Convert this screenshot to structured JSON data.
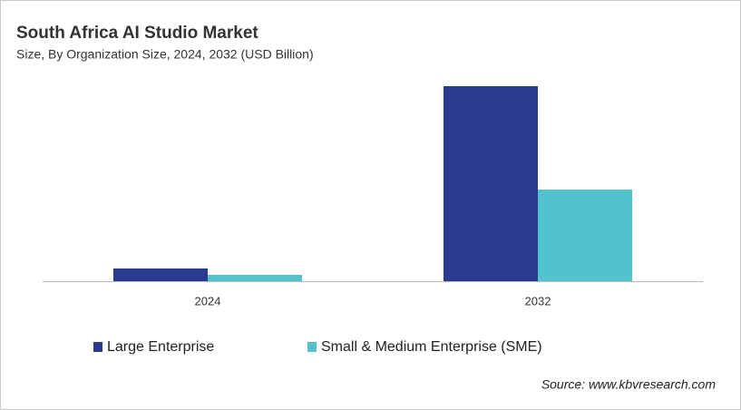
{
  "chart_data": {
    "type": "bar",
    "title": "South Africa AI Studio Market",
    "subtitle": "Size, By Organization Size, 2024, 2032 (USD Billion)",
    "categories": [
      "2024",
      "2032"
    ],
    "series": [
      {
        "name": "Large Enterprise",
        "color": "#2b3990",
        "values": [
          0.028,
          0.43
        ]
      },
      {
        "name": "Small & Medium Enterprise (SME)",
        "color": "#52c3cd",
        "values": [
          0.014,
          0.202
        ]
      }
    ],
    "ylim": [
      0,
      0.46
    ],
    "source": "Source: www.kbvresearch.com"
  }
}
